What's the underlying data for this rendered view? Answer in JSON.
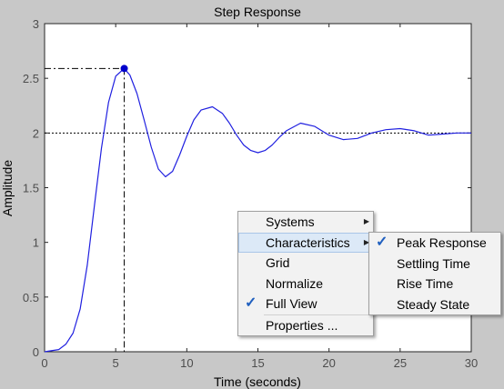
{
  "chart_data": {
    "type": "line",
    "title": "Step Response",
    "xlabel": "Time (seconds)",
    "ylabel": "Amplitude",
    "xlim": [
      0,
      30
    ],
    "ylim": [
      0,
      3
    ],
    "xticks": [
      "0",
      "5",
      "10",
      "15",
      "20",
      "25",
      "30"
    ],
    "yticks": [
      "0",
      "0.5",
      "1",
      "1.5",
      "2",
      "2.5",
      "3"
    ],
    "grid": false,
    "steady_state": 2,
    "peak": {
      "time": 5.6,
      "amplitude": 2.59
    },
    "series": [
      {
        "color": "#2020e0",
        "x": [
          0,
          1,
          1.5,
          2,
          2.5,
          3,
          3.5,
          4,
          4.5,
          5,
          5.6,
          6,
          6.5,
          7,
          7.5,
          8,
          8.5,
          9,
          9.5,
          10,
          10.5,
          11,
          11.8,
          12.5,
          13,
          13.5,
          14,
          14.5,
          15,
          15.5,
          16,
          16.5,
          17,
          18,
          19,
          20,
          21,
          22,
          23,
          24,
          25,
          26,
          27,
          28,
          29,
          30
        ],
        "y": [
          0,
          0.02,
          0.07,
          0.17,
          0.39,
          0.79,
          1.33,
          1.86,
          2.28,
          2.52,
          2.59,
          2.53,
          2.36,
          2.12,
          1.87,
          1.67,
          1.6,
          1.65,
          1.8,
          1.97,
          2.12,
          2.21,
          2.24,
          2.18,
          2.09,
          1.98,
          1.89,
          1.84,
          1.82,
          1.84,
          1.89,
          1.96,
          2.02,
          2.09,
          2.06,
          1.98,
          1.94,
          1.95,
          2.0,
          2.03,
          2.04,
          2.02,
          1.98,
          1.99,
          2.0,
          2.0
        ]
      }
    ]
  },
  "context_menu": {
    "items": [
      {
        "label": "Systems",
        "submenu": true,
        "checked": false,
        "highlighted": false
      },
      {
        "label": "Characteristics",
        "submenu": true,
        "checked": false,
        "highlighted": true
      },
      {
        "label": "Grid",
        "submenu": false,
        "checked": false,
        "highlighted": false
      },
      {
        "label": "Normalize",
        "submenu": false,
        "checked": false,
        "highlighted": false
      },
      {
        "label": "Full View",
        "submenu": false,
        "checked": true,
        "highlighted": false
      },
      {
        "label": "Properties ...",
        "submenu": false,
        "checked": false,
        "highlighted": false
      }
    ]
  },
  "characteristics_submenu": {
    "items": [
      {
        "label": "Peak Response",
        "checked": true
      },
      {
        "label": "Settling Time",
        "checked": false
      },
      {
        "label": "Rise Time",
        "checked": false
      },
      {
        "label": "Steady State",
        "checked": false
      }
    ]
  },
  "icons": {
    "check": "✓",
    "submenu_arrow": "▶"
  }
}
